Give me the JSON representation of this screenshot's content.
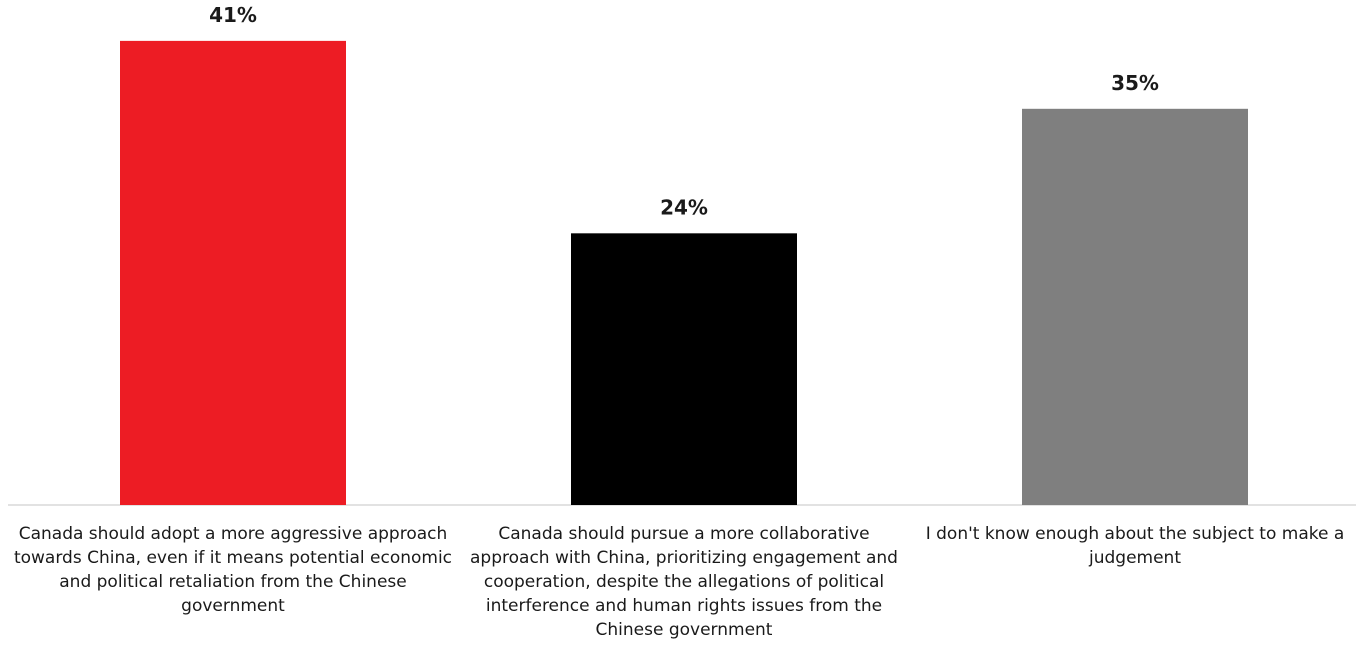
{
  "chart_data": {
    "type": "bar",
    "categories": [
      "Canada should adopt a more aggressive approach towards China, even if it means potential economic and political retaliation from the Chinese government",
      "Canada should pursue a more collaborative approach with China, prioritizing engagement and cooperation, despite the allegations of political interference and human rights issues from the Chinese government",
      "I don't know enough about the subject to make a judgement"
    ],
    "values": [
      41,
      24,
      35
    ],
    "data_labels": [
      "41%",
      "24%",
      "35%"
    ],
    "colors": [
      "#ed1c24",
      "#000000",
      "#7f7f7f"
    ],
    "ylim": [
      0,
      45
    ],
    "grid": false,
    "legend": "none"
  }
}
